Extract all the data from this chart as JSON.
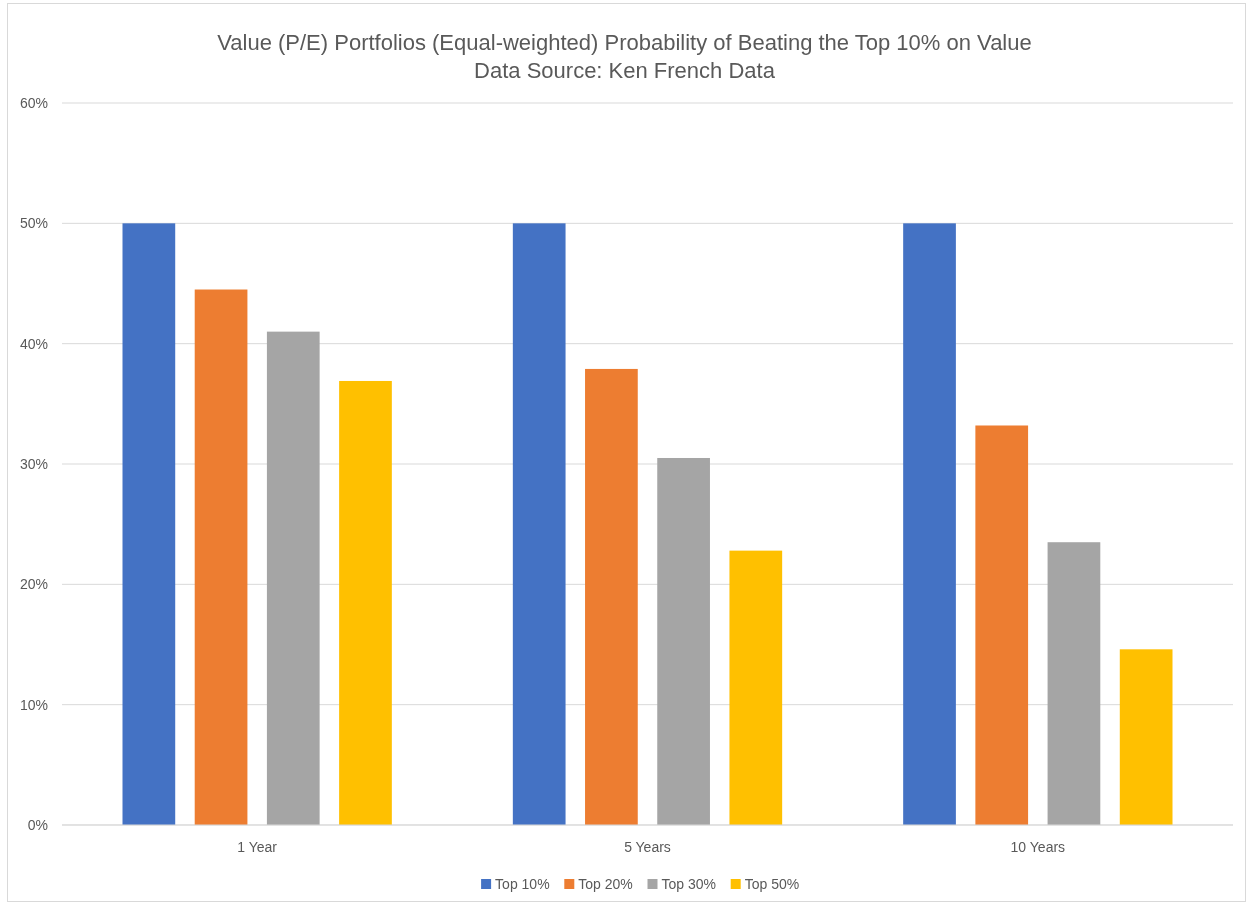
{
  "chart_data": {
    "type": "bar",
    "title": "Value (P/E) Portfolios (Equal-weighted) Probability of Beating the Top 10% on Value",
    "subtitle": "Data Source: Ken French Data",
    "categories": [
      "1 Year",
      "5 Years",
      "10 Years"
    ],
    "series": [
      {
        "name": "Top 10%",
        "color": "#4472c4",
        "values": [
          50,
          50,
          50
        ]
      },
      {
        "name": "Top 20%",
        "color": "#ed7d31",
        "values": [
          44.5,
          37.9,
          33.2
        ]
      },
      {
        "name": "Top 30%",
        "color": "#a5a5a5",
        "values": [
          41.0,
          30.5,
          23.5
        ]
      },
      {
        "name": "Top 50%",
        "color": "#ffc000",
        "values": [
          36.9,
          22.8,
          14.6
        ]
      }
    ],
    "ylim": [
      0,
      60
    ],
    "yticks": [
      {
        "value": 0,
        "label": "0%"
      },
      {
        "value": 10,
        "label": "10%"
      },
      {
        "value": 20,
        "label": "20%"
      },
      {
        "value": 30,
        "label": "30%"
      },
      {
        "value": 40,
        "label": "40%"
      },
      {
        "value": 50,
        "label": "50%"
      },
      {
        "value": 60,
        "label": "60%"
      }
    ],
    "grid": "y",
    "legend": "bottom"
  }
}
